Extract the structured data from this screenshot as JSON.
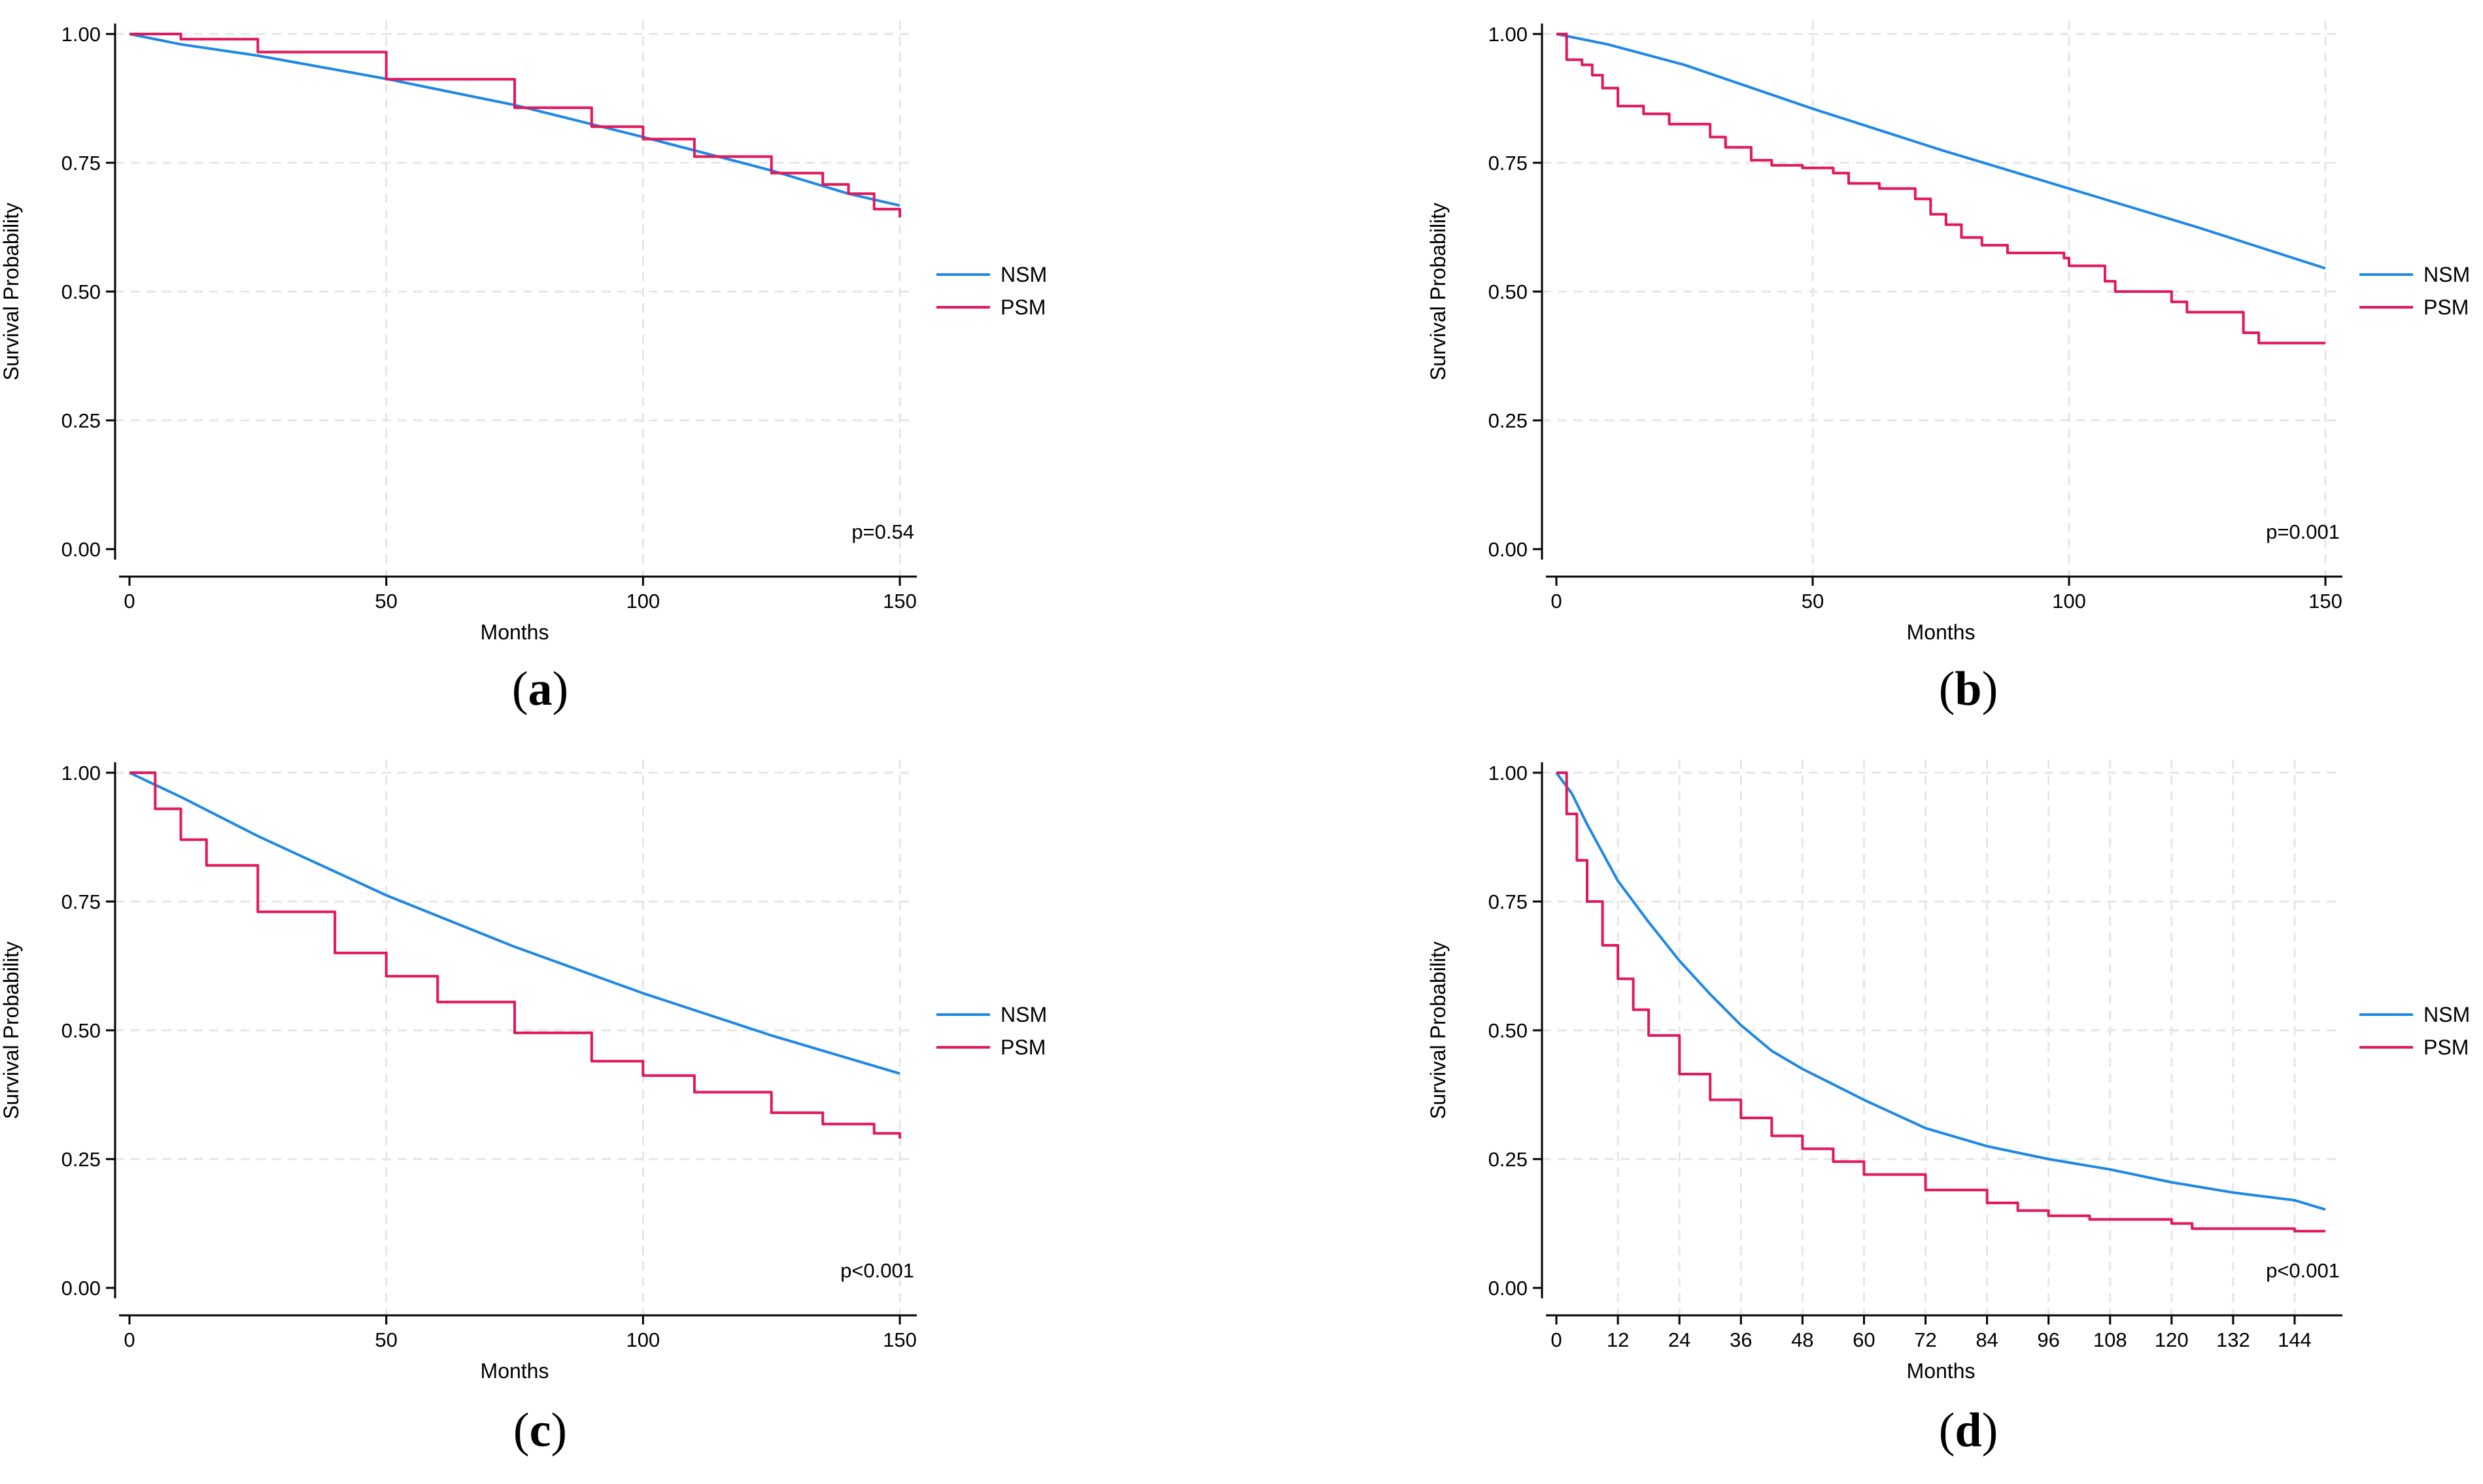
{
  "colors": {
    "nsm": "#1e88e5",
    "psm": "#e3175a",
    "grid": "#e6e6e6",
    "axis": "#000000"
  },
  "chart_data": [
    {
      "type": "line",
      "panel": "(a)",
      "caption_letter": "a",
      "xlabel": "Months",
      "ylabel": "Survival Probability",
      "xlim": [
        0,
        150
      ],
      "ylim": [
        0,
        1
      ],
      "x_ticks": [
        0,
        50,
        100,
        150
      ],
      "x_tick_labels": [
        "0",
        "50",
        "100",
        "150"
      ],
      "y_ticks": [
        0,
        0.25,
        0.5,
        0.75,
        1.0
      ],
      "y_tick_labels": [
        "0.00",
        "0.25",
        "0.50",
        "0.75",
        "1.00"
      ],
      "grid": true,
      "legend_position": "right",
      "annotation": "p=0.54",
      "series": [
        {
          "name": "NSM",
          "step": false,
          "points": [
            [
              0,
              1.0
            ],
            [
              10,
              0.98
            ],
            [
              25,
              0.958
            ],
            [
              50,
              0.913
            ],
            [
              75,
              0.862
            ],
            [
              100,
              0.8
            ],
            [
              125,
              0.735
            ],
            [
              140,
              0.69
            ],
            [
              150,
              0.667
            ]
          ]
        },
        {
          "name": "PSM",
          "step": true,
          "points": [
            [
              0,
              1.0
            ],
            [
              10,
              0.99
            ],
            [
              25,
              0.965
            ],
            [
              50,
              0.912
            ],
            [
              75,
              0.857
            ],
            [
              90,
              0.82
            ],
            [
              100,
              0.796
            ],
            [
              110,
              0.762
            ],
            [
              125,
              0.73
            ],
            [
              135,
              0.708
            ],
            [
              140,
              0.69
            ],
            [
              145,
              0.66
            ],
            [
              150,
              0.644
            ]
          ]
        }
      ]
    },
    {
      "type": "line",
      "panel": "(b)",
      "caption_letter": "b",
      "xlabel": "Months",
      "ylabel": "Survival Probability",
      "xlim": [
        0,
        150
      ],
      "ylim": [
        0,
        1
      ],
      "x_ticks": [
        0,
        50,
        100,
        150
      ],
      "x_tick_labels": [
        "0",
        "50",
        "100",
        "150"
      ],
      "y_ticks": [
        0,
        0.25,
        0.5,
        0.75,
        1.0
      ],
      "y_tick_labels": [
        "0.00",
        "0.25",
        "0.50",
        "0.75",
        "1.00"
      ],
      "grid": true,
      "legend_position": "right",
      "annotation": "p=0.001",
      "series": [
        {
          "name": "NSM",
          "step": false,
          "points": [
            [
              0,
              1.0
            ],
            [
              10,
              0.98
            ],
            [
              25,
              0.94
            ],
            [
              50,
              0.855
            ],
            [
              75,
              0.775
            ],
            [
              100,
              0.7
            ],
            [
              125,
              0.625
            ],
            [
              150,
              0.545
            ]
          ]
        },
        {
          "name": "PSM",
          "step": true,
          "points": [
            [
              0,
              1.0
            ],
            [
              2,
              0.95
            ],
            [
              5,
              0.94
            ],
            [
              7,
              0.92
            ],
            [
              9,
              0.895
            ],
            [
              12,
              0.86
            ],
            [
              17,
              0.845
            ],
            [
              22,
              0.825
            ],
            [
              30,
              0.8
            ],
            [
              33,
              0.78
            ],
            [
              38,
              0.755
            ],
            [
              42,
              0.745
            ],
            [
              48,
              0.74
            ],
            [
              54,
              0.73
            ],
            [
              57,
              0.71
            ],
            [
              63,
              0.7
            ],
            [
              70,
              0.68
            ],
            [
              73,
              0.65
            ],
            [
              76,
              0.63
            ],
            [
              79,
              0.605
            ],
            [
              83,
              0.59
            ],
            [
              88,
              0.575
            ],
            [
              99,
              0.565
            ],
            [
              100,
              0.55
            ],
            [
              107,
              0.52
            ],
            [
              109,
              0.5
            ],
            [
              120,
              0.48
            ],
            [
              123,
              0.46
            ],
            [
              134,
              0.42
            ],
            [
              137,
              0.4
            ],
            [
              150,
              0.4
            ]
          ]
        }
      ]
    },
    {
      "type": "line",
      "panel": "(c)",
      "caption_letter": "c",
      "xlabel": "Months",
      "ylabel": "Survival Probability",
      "xlim": [
        0,
        150
      ],
      "ylim": [
        0,
        1
      ],
      "x_ticks": [
        0,
        50,
        100,
        150
      ],
      "x_tick_labels": [
        "0",
        "50",
        "100",
        "150"
      ],
      "y_ticks": [
        0,
        0.25,
        0.5,
        0.75,
        1.0
      ],
      "y_tick_labels": [
        "0.00",
        "0.25",
        "0.50",
        "0.75",
        "1.00"
      ],
      "grid": true,
      "legend_position": "right",
      "annotation": "p<0.001",
      "series": [
        {
          "name": "NSM",
          "step": false,
          "points": [
            [
              0,
              1.0
            ],
            [
              10,
              0.953
            ],
            [
              25,
              0.877
            ],
            [
              50,
              0.762
            ],
            [
              75,
              0.662
            ],
            [
              100,
              0.572
            ],
            [
              125,
              0.49
            ],
            [
              150,
              0.416
            ]
          ]
        },
        {
          "name": "PSM",
          "step": true,
          "points": [
            [
              0,
              1.0
            ],
            [
              5,
              0.93
            ],
            [
              10,
              0.87
            ],
            [
              15,
              0.82
            ],
            [
              25,
              0.73
            ],
            [
              40,
              0.65
            ],
            [
              50,
              0.605
            ],
            [
              60,
              0.555
            ],
            [
              75,
              0.495
            ],
            [
              90,
              0.44
            ],
            [
              100,
              0.412
            ],
            [
              110,
              0.38
            ],
            [
              125,
              0.34
            ],
            [
              135,
              0.318
            ],
            [
              145,
              0.3
            ],
            [
              150,
              0.29
            ]
          ]
        }
      ]
    },
    {
      "type": "line",
      "panel": "(d)",
      "caption_letter": "d",
      "xlabel": "Months",
      "ylabel": "Survival Probability",
      "xlim": [
        0,
        150
      ],
      "ylim": [
        0,
        1
      ],
      "x_ticks": [
        0,
        12,
        24,
        36,
        48,
        60,
        72,
        84,
        96,
        108,
        120,
        132,
        144
      ],
      "x_tick_labels": [
        "0",
        "12",
        "24",
        "36",
        "48",
        "60",
        "72",
        "84",
        "96",
        "108",
        "120",
        "132",
        "144"
      ],
      "y_ticks": [
        0,
        0.25,
        0.5,
        0.75,
        1.0
      ],
      "y_tick_labels": [
        "0.00",
        "0.25",
        "0.50",
        "0.75",
        "1.00"
      ],
      "grid": true,
      "legend_position": "right",
      "annotation": "p<0.001",
      "series": [
        {
          "name": "NSM",
          "step": false,
          "points": [
            [
              0,
              1.0
            ],
            [
              3,
              0.96
            ],
            [
              6,
              0.9
            ],
            [
              12,
              0.79
            ],
            [
              18,
              0.71
            ],
            [
              24,
              0.635
            ],
            [
              30,
              0.57
            ],
            [
              36,
              0.51
            ],
            [
              42,
              0.46
            ],
            [
              48,
              0.425
            ],
            [
              60,
              0.365
            ],
            [
              72,
              0.31
            ],
            [
              84,
              0.275
            ],
            [
              96,
              0.25
            ],
            [
              108,
              0.23
            ],
            [
              120,
              0.205
            ],
            [
              132,
              0.185
            ],
            [
              144,
              0.17
            ],
            [
              150,
              0.152
            ]
          ]
        },
        {
          "name": "PSM",
          "step": true,
          "points": [
            [
              0,
              1.0
            ],
            [
              2,
              0.92
            ],
            [
              4,
              0.83
            ],
            [
              6,
              0.75
            ],
            [
              9,
              0.665
            ],
            [
              12,
              0.6
            ],
            [
              15,
              0.54
            ],
            [
              18,
              0.49
            ],
            [
              24,
              0.415
            ],
            [
              30,
              0.365
            ],
            [
              36,
              0.33
            ],
            [
              42,
              0.295
            ],
            [
              48,
              0.27
            ],
            [
              54,
              0.245
            ],
            [
              60,
              0.22
            ],
            [
              72,
              0.19
            ],
            [
              84,
              0.165
            ],
            [
              90,
              0.15
            ],
            [
              96,
              0.14
            ],
            [
              104,
              0.133
            ],
            [
              120,
              0.125
            ],
            [
              124,
              0.115
            ],
            [
              136,
              0.115
            ],
            [
              144,
              0.11
            ],
            [
              150,
              0.11
            ]
          ]
        }
      ]
    }
  ]
}
